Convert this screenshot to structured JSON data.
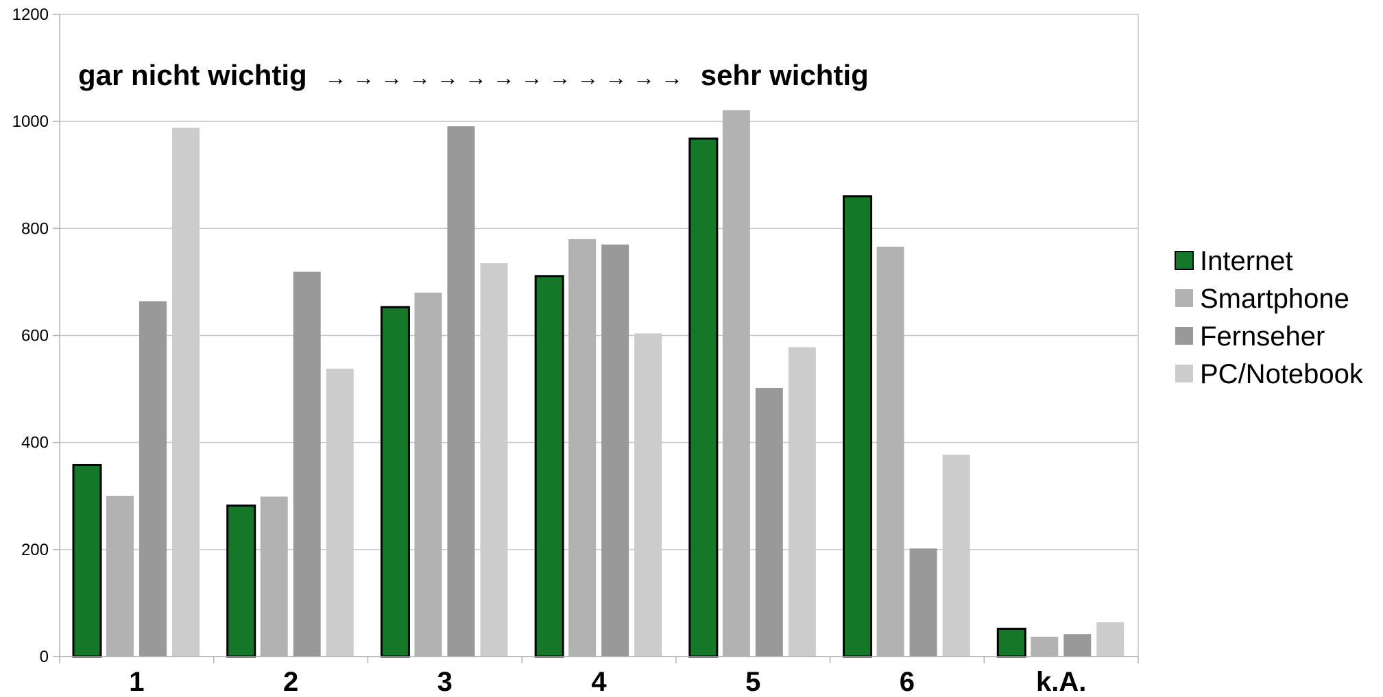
{
  "chart_data": {
    "type": "bar",
    "categories": [
      "1",
      "2",
      "3",
      "4",
      "5",
      "6",
      "k.A."
    ],
    "series": [
      {
        "name": "Internet",
        "values": [
          358,
          282,
          653,
          711,
          968,
          860,
          52
        ],
        "color": "#157828",
        "outlined": true
      },
      {
        "name": "Smartphone",
        "values": [
          300,
          299,
          680,
          780,
          1021,
          766,
          37
        ],
        "color": "#b2b2b2",
        "outlined": false
      },
      {
        "name": "Fernseher",
        "values": [
          664,
          719,
          991,
          770,
          502,
          202,
          42
        ],
        "color": "#999999",
        "outlined": false
      },
      {
        "name": "PC/Notebook",
        "values": [
          988,
          538,
          735,
          604,
          578,
          377,
          64
        ],
        "color": "#cccccc",
        "outlined": false
      }
    ],
    "title": "",
    "xlabel": "",
    "ylabel": "",
    "ylim": [
      0,
      1200
    ],
    "yticks": [
      0,
      200,
      400,
      600,
      800,
      1000,
      1200
    ],
    "grid": true,
    "legend_position": "right",
    "annotation": {
      "left": "gar nicht wichtig",
      "arrows": "→ → → → → → → → → → → → →",
      "right": "sehr wichtig"
    }
  }
}
